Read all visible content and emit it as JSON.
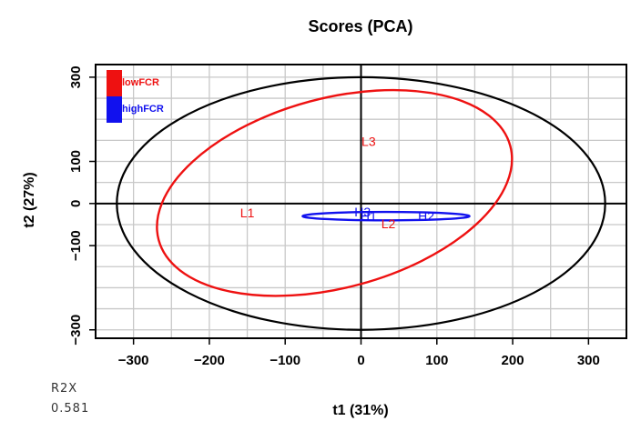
{
  "chart_data": {
    "type": "scatter",
    "title": "Scores (PCA)",
    "xlabel": "t1 (31%)",
    "ylabel": "t2 (27%)",
    "xlim": [
      -350,
      350
    ],
    "ylim": [
      -320,
      330
    ],
    "xticks": [
      -300,
      -200,
      -100,
      0,
      100,
      200,
      300
    ],
    "yticks": [
      -300,
      -100,
      0,
      100,
      300
    ],
    "xtick_labels": [
      "−300",
      "−200",
      "−100",
      "0",
      "100",
      "200",
      "300"
    ],
    "ytick_labels": [
      "−300",
      "−100",
      "0",
      "100",
      "300"
    ],
    "grid": true,
    "legend_position": "top-left",
    "series": [
      {
        "name": "lowFCR",
        "color": "#ee1111",
        "points": [
          {
            "label": "L1",
            "x": -150,
            "y": -22
          },
          {
            "label": "L2",
            "x": 36,
            "y": -48
          },
          {
            "label": "L3",
            "x": 10,
            "y": 148
          }
        ],
        "ellipse": {
          "cx": -35,
          "cy": 25,
          "rx": 240,
          "ry": 225,
          "rotation_deg": -15
        }
      },
      {
        "name": "highFCR",
        "color": "#1111ee",
        "points": [
          {
            "label": "H1",
            "x": 10,
            "y": -30
          },
          {
            "label": "H2",
            "x": 86,
            "y": -30
          },
          {
            "label": "H3",
            "x": 2,
            "y": -20
          }
        ],
        "ellipse": {
          "cx": 33,
          "cy": -30,
          "rx": 110,
          "ry": 10,
          "rotation_deg": 0
        }
      }
    ],
    "hotelling_ellipse": {
      "cx": 0,
      "cy": 0,
      "rx": 322,
      "ry": 300,
      "color": "#000000"
    }
  },
  "stats": {
    "r2x_label": "R2X",
    "r2x_value": "0.581"
  }
}
